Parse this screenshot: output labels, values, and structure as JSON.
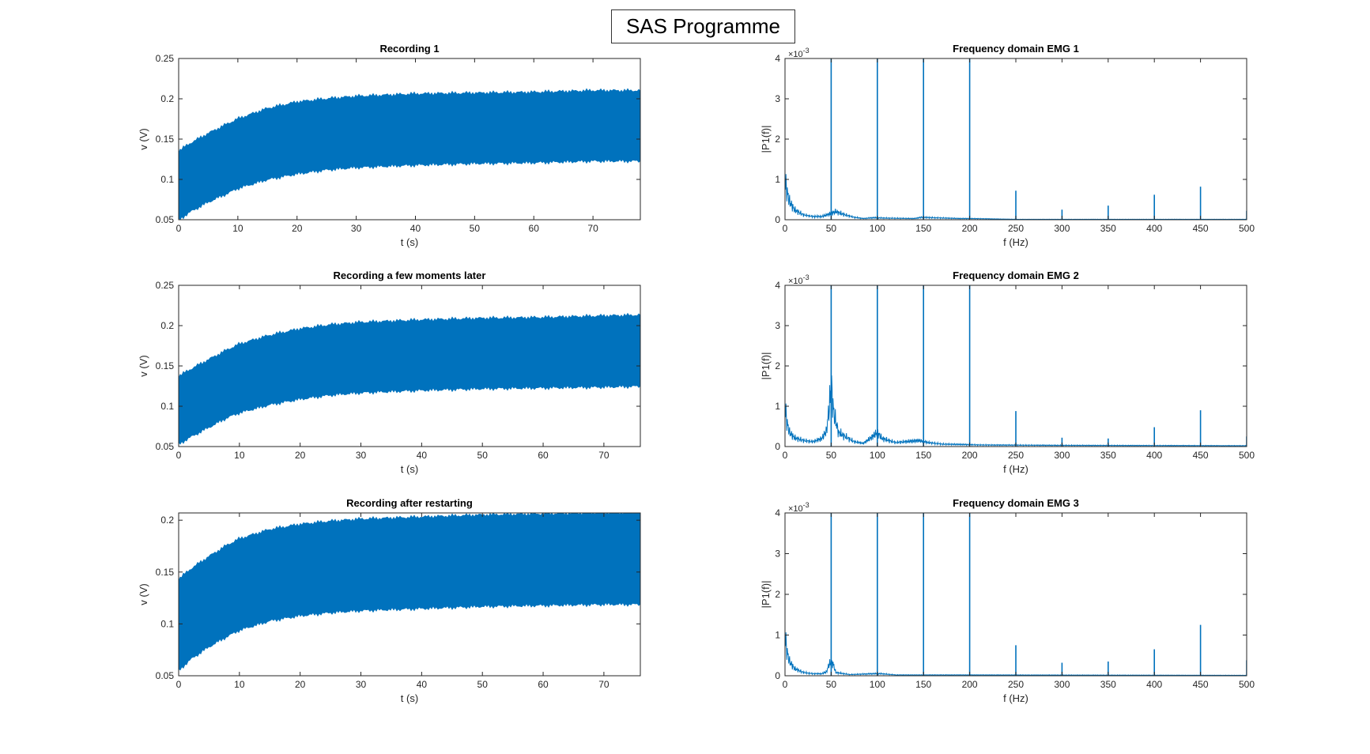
{
  "figure": {
    "title": "SAS Programme"
  },
  "colors": {
    "series": "#0072BD",
    "axis": "#262626",
    "background": "#ffffff"
  },
  "chart_data": [
    {
      "type": "area",
      "title": "Recording 1",
      "xlabel": "t (s)",
      "ylabel": "v (V)",
      "xlim": [
        0,
        78
      ],
      "ylim": [
        0.05,
        0.25
      ],
      "xticks": [
        0,
        10,
        20,
        30,
        40,
        50,
        60,
        70
      ],
      "yticks": [
        0.05,
        0.1,
        0.15,
        0.2,
        0.25
      ],
      "ytick_labels": [
        "0.05",
        "0.1",
        "0.15",
        "0.2",
        "0.25"
      ],
      "grid": false,
      "series": [
        {
          "x": [
            0,
            2,
            5,
            8,
            10,
            15,
            20,
            25,
            30,
            40,
            50,
            60,
            70,
            78
          ],
          "upper": [
            0.135,
            0.145,
            0.157,
            0.168,
            0.175,
            0.188,
            0.196,
            0.2,
            0.203,
            0.206,
            0.207,
            0.208,
            0.21,
            0.21
          ],
          "lower": [
            0.05,
            0.06,
            0.072,
            0.082,
            0.089,
            0.1,
            0.107,
            0.112,
            0.115,
            0.118,
            0.12,
            0.121,
            0.123,
            0.123
          ]
        }
      ]
    },
    {
      "type": "line",
      "title": "Frequency domain EMG 1",
      "xlabel": "f (Hz)",
      "ylabel": "|P1(f)|",
      "exponent": "×10",
      "exponent_power": "-3",
      "xlim": [
        0,
        500
      ],
      "ylim": [
        0,
        4
      ],
      "xticks": [
        0,
        50,
        100,
        150,
        200,
        250,
        300,
        350,
        400,
        450,
        500
      ],
      "yticks": [
        0,
        1,
        2,
        3,
        4
      ],
      "grid": false,
      "series": [
        {
          "baseline": [
            [
              0,
              1.0
            ],
            [
              2,
              0.7
            ],
            [
              5,
              0.45
            ],
            [
              10,
              0.25
            ],
            [
              20,
              0.12
            ],
            [
              30,
              0.08
            ],
            [
              40,
              0.08
            ],
            [
              48,
              0.14
            ],
            [
              55,
              0.2
            ],
            [
              65,
              0.12
            ],
            [
              75,
              0.06
            ],
            [
              85,
              0.03
            ],
            [
              95,
              0.05
            ],
            [
              110,
              0.04
            ],
            [
              140,
              0.03
            ],
            [
              148,
              0.06
            ],
            [
              160,
              0.05
            ],
            [
              190,
              0.03
            ],
            [
              200,
              0.03
            ],
            [
              250,
              0.01
            ],
            [
              500,
              0.01
            ]
          ],
          "peaks": [
            [
              50,
              4.0
            ],
            [
              100,
              4.0
            ],
            [
              150,
              4.0
            ],
            [
              200,
              4.0
            ],
            [
              250,
              0.72
            ],
            [
              300,
              0.25
            ],
            [
              350,
              0.35
            ],
            [
              400,
              0.62
            ],
            [
              450,
              0.82
            ],
            [
              500,
              0.22
            ]
          ]
        }
      ]
    },
    {
      "type": "area",
      "title": "Recording a few moments later",
      "xlabel": "t (s)",
      "ylabel": "v (V)",
      "xlim": [
        0,
        76
      ],
      "ylim": [
        0.05,
        0.25
      ],
      "xticks": [
        0,
        10,
        20,
        30,
        40,
        50,
        60,
        70
      ],
      "yticks": [
        0.05,
        0.1,
        0.15,
        0.2,
        0.25
      ],
      "ytick_labels": [
        "0.05",
        "0.1",
        "0.15",
        "0.2",
        "0.25"
      ],
      "grid": false,
      "series": [
        {
          "x": [
            0,
            2,
            5,
            8,
            10,
            15,
            20,
            25,
            30,
            40,
            50,
            60,
            70,
            76
          ],
          "upper": [
            0.137,
            0.146,
            0.158,
            0.17,
            0.177,
            0.188,
            0.196,
            0.201,
            0.204,
            0.207,
            0.209,
            0.21,
            0.212,
            0.213
          ],
          "lower": [
            0.053,
            0.062,
            0.074,
            0.086,
            0.092,
            0.102,
            0.109,
            0.114,
            0.117,
            0.12,
            0.122,
            0.123,
            0.124,
            0.125
          ]
        }
      ]
    },
    {
      "type": "line",
      "title": "Frequency domain EMG 2",
      "xlabel": "f (Hz)",
      "ylabel": "|P1(f)|",
      "exponent": "×10",
      "exponent_power": "-3",
      "xlim": [
        0,
        500
      ],
      "ylim": [
        0,
        4
      ],
      "xticks": [
        0,
        50,
        100,
        150,
        200,
        250,
        300,
        350,
        400,
        450,
        500
      ],
      "yticks": [
        0,
        1,
        2,
        3,
        4
      ],
      "grid": false,
      "series": [
        {
          "baseline": [
            [
              0,
              1.0
            ],
            [
              2,
              0.6
            ],
            [
              5,
              0.35
            ],
            [
              10,
              0.22
            ],
            [
              20,
              0.15
            ],
            [
              30,
              0.12
            ],
            [
              40,
              0.2
            ],
            [
              45,
              0.4
            ],
            [
              48,
              1.0
            ],
            [
              50,
              1.5
            ],
            [
              53,
              0.8
            ],
            [
              58,
              0.35
            ],
            [
              65,
              0.25
            ],
            [
              75,
              0.12
            ],
            [
              85,
              0.08
            ],
            [
              95,
              0.25
            ],
            [
              100,
              0.35
            ],
            [
              105,
              0.2
            ],
            [
              120,
              0.1
            ],
            [
              145,
              0.15
            ],
            [
              155,
              0.1
            ],
            [
              170,
              0.06
            ],
            [
              195,
              0.05
            ],
            [
              210,
              0.04
            ],
            [
              300,
              0.03
            ],
            [
              500,
              0.02
            ]
          ],
          "peaks": [
            [
              50,
              4.0
            ],
            [
              100,
              4.0
            ],
            [
              150,
              4.0
            ],
            [
              200,
              4.0
            ],
            [
              250,
              0.88
            ],
            [
              300,
              0.22
            ],
            [
              350,
              0.2
            ],
            [
              400,
              0.48
            ],
            [
              450,
              0.9
            ],
            [
              500,
              0.25
            ]
          ]
        }
      ]
    },
    {
      "type": "area",
      "title": "Recording after restarting",
      "xlabel": "t (s)",
      "ylabel": "v (V)",
      "xlim": [
        0,
        76
      ],
      "ylim": [
        0.05,
        0.207
      ],
      "xticks": [
        0,
        10,
        20,
        30,
        40,
        50,
        60,
        70
      ],
      "yticks": [
        0.05,
        0.1,
        0.15,
        0.2
      ],
      "ytick_labels": [
        "0.05",
        "0.1",
        "0.15",
        "0.2"
      ],
      "grid": false,
      "series": [
        {
          "x": [
            0,
            2,
            5,
            8,
            10,
            15,
            20,
            25,
            30,
            40,
            50,
            60,
            70,
            76
          ],
          "upper": [
            0.143,
            0.153,
            0.165,
            0.176,
            0.182,
            0.191,
            0.196,
            0.199,
            0.201,
            0.203,
            0.205,
            0.206,
            0.207,
            0.207
          ],
          "lower": [
            0.055,
            0.066,
            0.078,
            0.088,
            0.094,
            0.103,
            0.108,
            0.111,
            0.113,
            0.115,
            0.117,
            0.118,
            0.119,
            0.119
          ]
        }
      ]
    },
    {
      "type": "line",
      "title": "Frequency domain EMG 3",
      "xlabel": "f (Hz)",
      "ylabel": "|P1(f)|",
      "exponent": "×10",
      "exponent_power": "-3",
      "xlim": [
        0,
        500
      ],
      "ylim": [
        0,
        4
      ],
      "xticks": [
        0,
        50,
        100,
        150,
        200,
        250,
        300,
        350,
        400,
        450,
        500
      ],
      "yticks": [
        0,
        1,
        2,
        3,
        4
      ],
      "grid": false,
      "series": [
        {
          "baseline": [
            [
              0,
              1.0
            ],
            [
              2,
              0.6
            ],
            [
              5,
              0.35
            ],
            [
              10,
              0.18
            ],
            [
              20,
              0.08
            ],
            [
              30,
              0.05
            ],
            [
              40,
              0.05
            ],
            [
              45,
              0.1
            ],
            [
              48,
              0.3
            ],
            [
              52,
              0.3
            ],
            [
              55,
              0.08
            ],
            [
              70,
              0.03
            ],
            [
              95,
              0.05
            ],
            [
              105,
              0.05
            ],
            [
              120,
              0.02
            ],
            [
              200,
              0.02
            ],
            [
              500,
              0.01
            ]
          ],
          "peaks": [
            [
              50,
              4.0
            ],
            [
              100,
              4.0
            ],
            [
              150,
              4.0
            ],
            [
              200,
              4.0
            ],
            [
              250,
              0.75
            ],
            [
              300,
              0.32
            ],
            [
              350,
              0.35
            ],
            [
              400,
              0.65
            ],
            [
              450,
              1.25
            ],
            [
              500,
              0.38
            ]
          ]
        }
      ]
    }
  ]
}
